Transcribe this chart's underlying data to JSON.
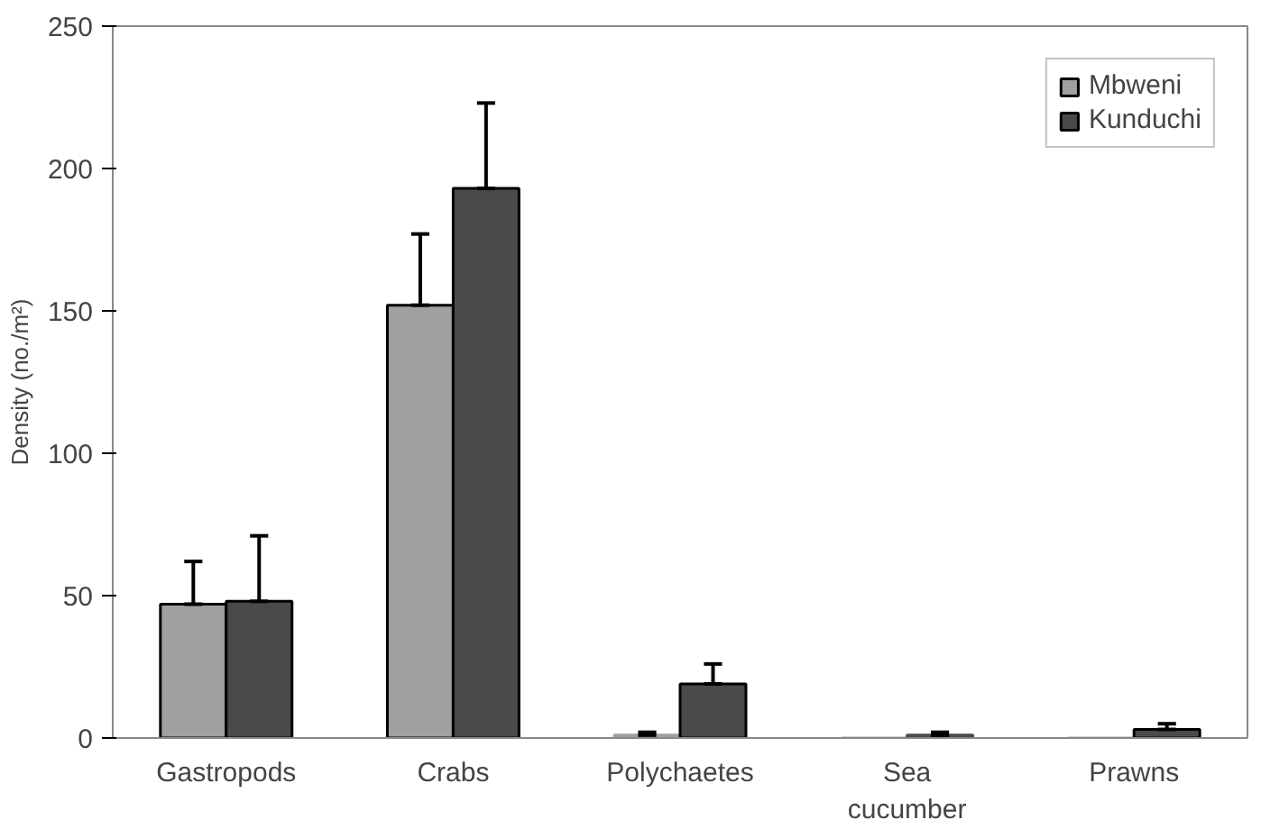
{
  "chart_data": {
    "type": "bar",
    "ylabel": "Density (no./m²)",
    "categories": [
      "Gastropods",
      "Crabs",
      "Polychaetes",
      "Sea\ncucumber",
      "Prawns"
    ],
    "series": [
      {
        "name": "Mbweni",
        "color": "#a0a0a0",
        "values": [
          47,
          152,
          1,
          0,
          0
        ],
        "errors": [
          [
            47,
            62
          ],
          [
            152,
            177
          ],
          [
            1,
            2
          ],
          null,
          null
        ]
      },
      {
        "name": "Kunduchi",
        "color": "#4a4a4a",
        "values": [
          48,
          193,
          19,
          1,
          3
        ],
        "errors": [
          [
            48,
            71
          ],
          [
            193,
            223
          ],
          [
            19,
            26
          ],
          [
            1,
            2
          ],
          [
            3,
            5
          ]
        ]
      }
    ],
    "ylim": [
      0,
      250
    ],
    "yticks": [
      0,
      50,
      100,
      150,
      200,
      250
    ],
    "grid": false,
    "legend": "top right"
  }
}
